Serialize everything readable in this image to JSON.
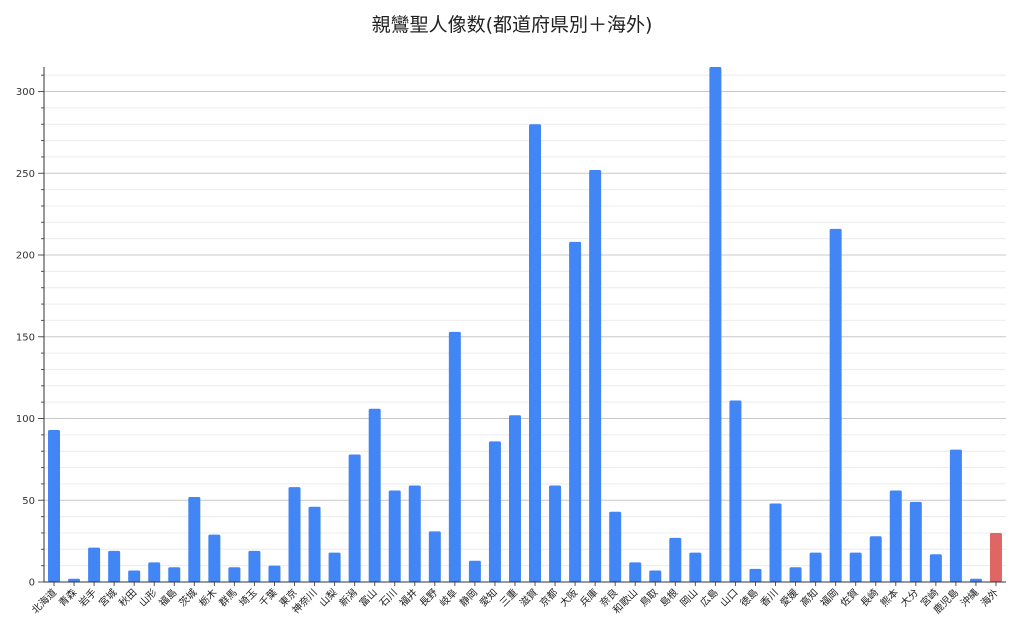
{
  "chart_data": {
    "type": "bar",
    "title": "親鸞聖人像数(都道府県別＋海外)",
    "xlabel": "",
    "ylabel": "",
    "ylim": [
      0,
      315
    ],
    "yticks": [
      0,
      50,
      100,
      150,
      200,
      250,
      300
    ],
    "grid": true,
    "legend": "none",
    "categories": [
      "北海道",
      "青森",
      "岩手",
      "宮城",
      "秋田",
      "山形",
      "福島",
      "茨城",
      "栃木",
      "群馬",
      "埼玉",
      "千葉",
      "東京",
      "神奈川",
      "山梨",
      "新潟",
      "富山",
      "石川",
      "福井",
      "長野",
      "岐阜",
      "静岡",
      "愛知",
      "三重",
      "滋賀",
      "京都",
      "大阪",
      "兵庫",
      "奈良",
      "和歌山",
      "鳥取",
      "島根",
      "岡山",
      "広島",
      "山口",
      "徳島",
      "香川",
      "愛媛",
      "高知",
      "福岡",
      "佐賀",
      "長崎",
      "熊本",
      "大分",
      "宮崎",
      "鹿児島",
      "沖縄",
      "海外"
    ],
    "values": [
      93,
      2,
      21,
      19,
      7,
      12,
      9,
      52,
      29,
      9,
      19,
      10,
      58,
      46,
      18,
      78,
      106,
      56,
      59,
      31,
      153,
      13,
      86,
      102,
      280,
      59,
      208,
      252,
      43,
      12,
      7,
      27,
      18,
      315,
      111,
      8,
      48,
      9,
      18,
      216,
      18,
      28,
      56,
      49,
      17,
      81,
      2,
      30
    ],
    "colors": {
      "default": "#4285f4",
      "highlight": "#e06666",
      "highlight_category": "海外"
    }
  }
}
